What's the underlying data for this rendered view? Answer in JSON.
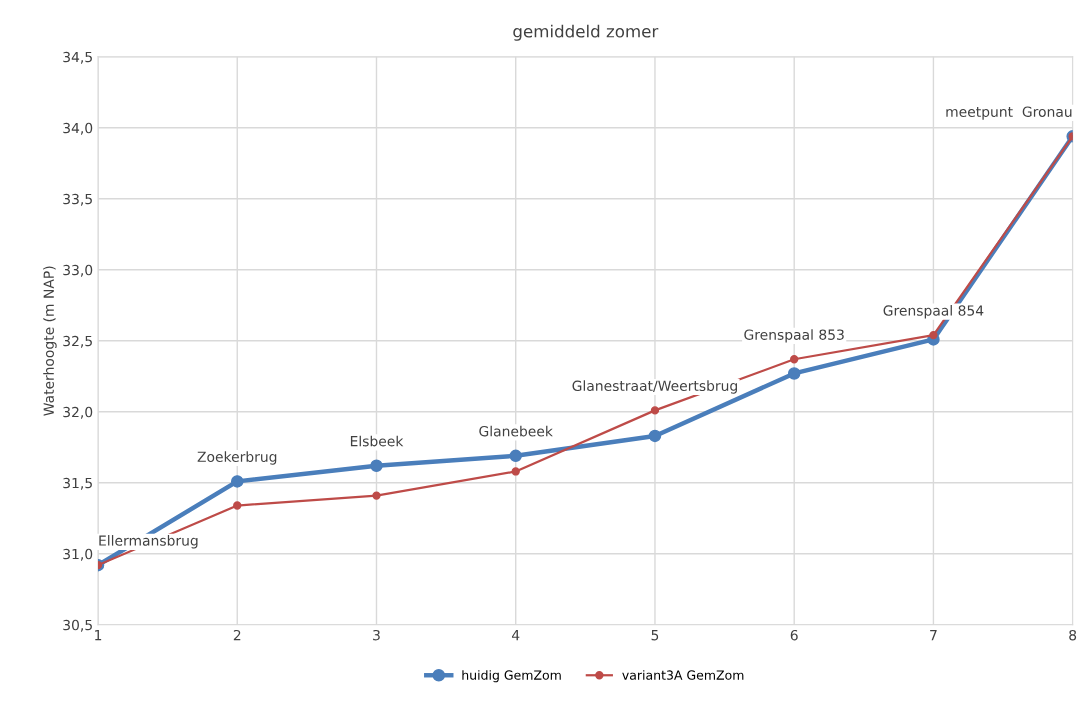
{
  "chart_data": {
    "type": "line",
    "title": "gemiddeld zomer",
    "ylabel": "Waterhoogte (m NAP)",
    "x": [
      1,
      2,
      3,
      4,
      5,
      6,
      7,
      8
    ],
    "series": [
      {
        "name": "huidig GemZom",
        "color": "#4a7ebb",
        "values": [
          30.92,
          31.51,
          31.62,
          31.69,
          31.83,
          32.27,
          32.51,
          33.94
        ]
      },
      {
        "name": "variant3A GemZom",
        "color": "#be4b48",
        "values": [
          30.92,
          31.34,
          31.41,
          31.58,
          32.01,
          32.37,
          32.54,
          33.94
        ]
      }
    ],
    "xlim": [
      1,
      8
    ],
    "xticks": [
      1,
      2,
      3,
      4,
      5,
      6,
      7,
      8
    ],
    "ylim": [
      30.5,
      34.5
    ],
    "yticks": [
      {
        "value": 30.5,
        "label": "30,5"
      },
      {
        "value": 31.0,
        "label": "31,0"
      },
      {
        "value": 31.5,
        "label": "31,5"
      },
      {
        "value": 32.0,
        "label": "32,0"
      },
      {
        "value": 32.5,
        "label": "32,5"
      },
      {
        "value": 33.0,
        "label": "33,0"
      },
      {
        "value": 33.5,
        "label": "33,5"
      },
      {
        "value": 34.0,
        "label": "34,0"
      },
      {
        "value": 34.5,
        "label": "34,5"
      }
    ],
    "annotations": [
      {
        "text": "Ellermansbrug",
        "x": 1,
        "y": 30.92
      },
      {
        "text": "Zoekerbrug",
        "x": 2,
        "y": 31.51
      },
      {
        "text": "Elsbeek",
        "x": 3,
        "y": 31.62
      },
      {
        "text": "Glanebeek",
        "x": 4,
        "y": 31.69
      },
      {
        "text": "Glanestraat/Weertsbrug",
        "x": 5,
        "y": 32.01
      },
      {
        "text": "Grenspaal 853",
        "x": 6,
        "y": 32.37
      },
      {
        "text": "Grenspaal 854",
        "x": 7,
        "y": 32.54
      },
      {
        "text": "meetpunt  Gronau",
        "x": 8,
        "y": 33.94
      }
    ],
    "grid": true,
    "legend": "bottom",
    "marker": "circle",
    "line_style": "solid"
  }
}
